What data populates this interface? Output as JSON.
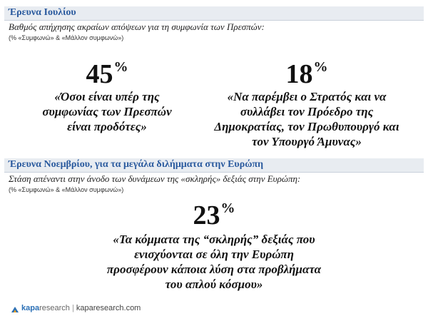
{
  "sections": [
    {
      "title": "Έρευνα Ιουλίου",
      "subtitle": "Βαθμός απήχησης ακραίων απόψεων για τη συμφωνία των Πρεσπών:",
      "note": "(% «Συμφωνώ» & «Μάλλον συμφωνώ»)",
      "items": [
        {
          "value": "45",
          "unit": "%",
          "quote": [
            "«Όσοι είναι υπέρ της",
            "συμφωνίας των Πρεσπών",
            "είναι προδότες»"
          ]
        },
        {
          "value": "18",
          "unit": "%",
          "quote": [
            "«Να παρέμβει ο Στρατός και να",
            "συλλάβει τον Πρόεδρο της",
            "Δημοκρατίας, τον Πρωθυπουργό και",
            "τον Υπουργό Άμυνας»"
          ]
        }
      ]
    },
    {
      "title": "Έρευνα Νοεμβρίου, για τα μεγάλα διλήμματα στην Ευρώπη",
      "subtitle": "Στάση απέναντι στην άνοδο των δυνάμεων της «σκληρής» δεξιάς στην Ευρώπη:",
      "note": "(% «Συμφωνώ» & «Μάλλον συμφωνώ»)",
      "items": [
        {
          "value": "23",
          "unit": "%",
          "quote": [
            "«Τα κόμματα της “σκληρής” δεξιάς που",
            "ενισχύονται σε όλη την Ευρώπη",
            "προσφέρουν κάποια λύση στα προβλήματα",
            "του απλού κόσμου»"
          ]
        }
      ]
    }
  ],
  "footer": {
    "brand_1": "kapa",
    "brand_2": "research",
    "url": "kaparesearch.com"
  }
}
